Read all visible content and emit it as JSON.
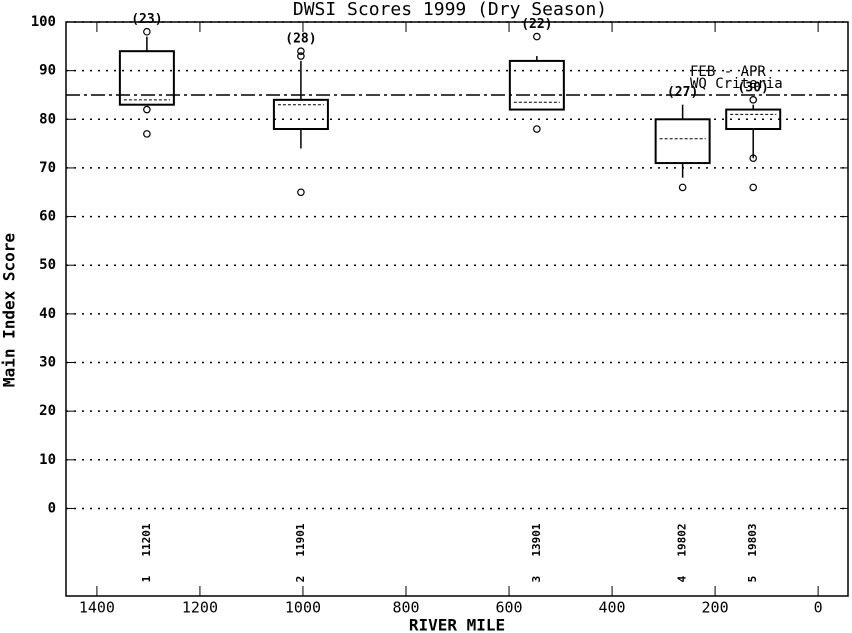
{
  "chart_data": {
    "type": "box",
    "title": "DWSI Scores 1999 (Dry Season)",
    "x_label": "RIVER MILE",
    "y_label": "Main Index Score",
    "xlim": [
      1460,
      -58
    ],
    "xticks": [
      1400,
      1200,
      1000,
      800,
      600,
      400,
      200,
      0
    ],
    "ylim": [
      -18,
      100
    ],
    "yticks": [
      0,
      10,
      20,
      30,
      40,
      50,
      60,
      70,
      80,
      90,
      100
    ],
    "grid": true,
    "reference": {
      "value": 85,
      "label": [
        "FEB - APR",
        "WQ Criteria"
      ]
    },
    "boxes": [
      {
        "station": "11201",
        "number": "1",
        "x": 1303,
        "count_label": "(23)",
        "whisker_low": 83,
        "q1": 83,
        "median": 84,
        "q3": 94,
        "whisker_high": 97,
        "outliers": [
          98,
          82,
          77
        ]
      },
      {
        "station": "11901",
        "number": "2",
        "x": 1004,
        "count_label": "(28)",
        "whisker_low": 74,
        "q1": 78,
        "median": 83,
        "q3": 84,
        "whisker_high": 92,
        "outliers": [
          94,
          93,
          65
        ]
      },
      {
        "station": "13901",
        "number": "3",
        "x": 546,
        "count_label": "(22)",
        "whisker_low": 82,
        "q1": 82,
        "median": 83.5,
        "q3": 92,
        "whisker_high": 93,
        "outliers": [
          97,
          78
        ]
      },
      {
        "station": "19802",
        "number": "4",
        "x": 263,
        "count_label": "(27)",
        "whisker_low": 68,
        "q1": 71,
        "median": 76,
        "q3": 80,
        "whisker_high": 83,
        "outliers": [
          66
        ]
      },
      {
        "station": "19803",
        "number": "5",
        "x": 126,
        "count_label": "(30)",
        "whisker_low": 72,
        "q1": 78,
        "median": 81,
        "q3": 82,
        "whisker_high": 83,
        "outliers": [
          84,
          72,
          66
        ]
      }
    ]
  }
}
